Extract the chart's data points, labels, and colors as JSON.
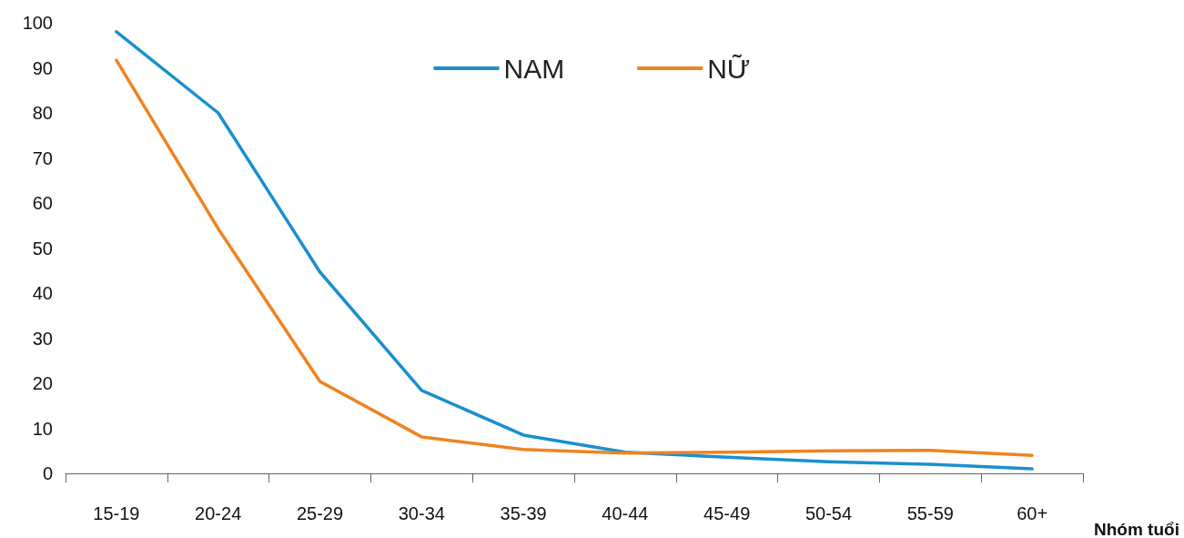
{
  "chart_data": {
    "type": "line",
    "xlabel": "Nhóm tuổi",
    "categories": [
      "15-19",
      "20-24",
      "25-29",
      "30-34",
      "35-39",
      "40-44",
      "45-49",
      "50-54",
      "55-59",
      "60+"
    ],
    "series": [
      {
        "name": "NAM",
        "color": "#1a8fd0",
        "values": [
          98,
          80,
          44.7,
          18.4,
          8.5,
          4.7,
          3.6,
          2.6,
          2,
          1
        ]
      },
      {
        "name": "NỮ",
        "color": "#f0831e",
        "values": [
          91.7,
          54.3,
          20.4,
          8.1,
          5.3,
          4.5,
          4.7,
          5,
          5.1,
          4
        ]
      }
    ],
    "ylim": [
      0,
      100
    ],
    "yticks": [
      0,
      10,
      20,
      30,
      40,
      50,
      60,
      70,
      80,
      90,
      100
    ],
    "grid": false,
    "legend": "top",
    "marker": "none",
    "line_style": "solid"
  }
}
